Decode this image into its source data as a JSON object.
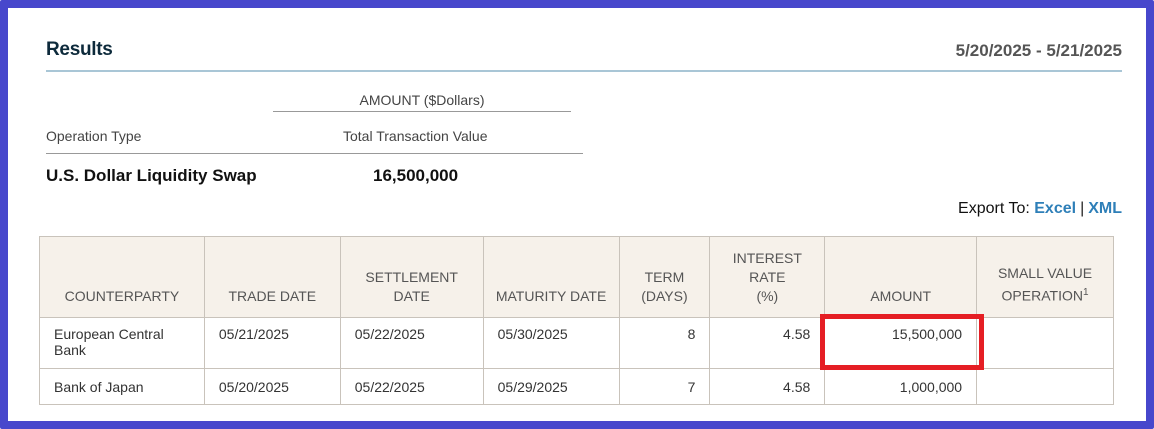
{
  "results": {
    "title": "Results",
    "date_range": "5/20/2025 - 5/21/2025"
  },
  "summary": {
    "amount_heading": "AMOUNT ($Dollars)",
    "operation_type_label": "Operation Type",
    "total_value_label": "Total Transaction Value",
    "operation_type": "U.S. Dollar Liquidity Swap",
    "total_value": "16,500,000"
  },
  "export": {
    "label": "Export To:",
    "excel": "Excel",
    "separator": "|",
    "xml": "XML"
  },
  "table": {
    "headers": {
      "counterparty": "COUNTERPARTY",
      "trade_date": "TRADE DATE",
      "settlement_date_line1": "SETTLEMENT",
      "settlement_date_line2": "DATE",
      "maturity_date": "MATURITY DATE",
      "term_line1": "TERM",
      "term_line2": "(DAYS)",
      "rate_line1": "INTEREST",
      "rate_line2": "RATE",
      "rate_line3": "(%)",
      "amount": "AMOUNT",
      "small_value_line1": "SMALL VALUE",
      "small_value_line2": "OPERATION",
      "small_value_footnote": "1"
    },
    "rows": [
      {
        "counterparty": "European Central Bank",
        "trade_date": "05/21/2025",
        "settlement_date": "05/22/2025",
        "maturity_date": "05/30/2025",
        "term": "8",
        "rate": "4.58",
        "amount": "15,500,000",
        "small_value": ""
      },
      {
        "counterparty": "Bank of Japan",
        "trade_date": "05/20/2025",
        "settlement_date": "05/22/2025",
        "maturity_date": "05/29/2025",
        "term": "7",
        "rate": "4.58",
        "amount": "1,000,000",
        "small_value": ""
      }
    ]
  },
  "colors": {
    "frame": "#4747cc",
    "highlight": "#e51e24",
    "link": "#2e7fb8",
    "header_bg": "#f6f1ea"
  }
}
